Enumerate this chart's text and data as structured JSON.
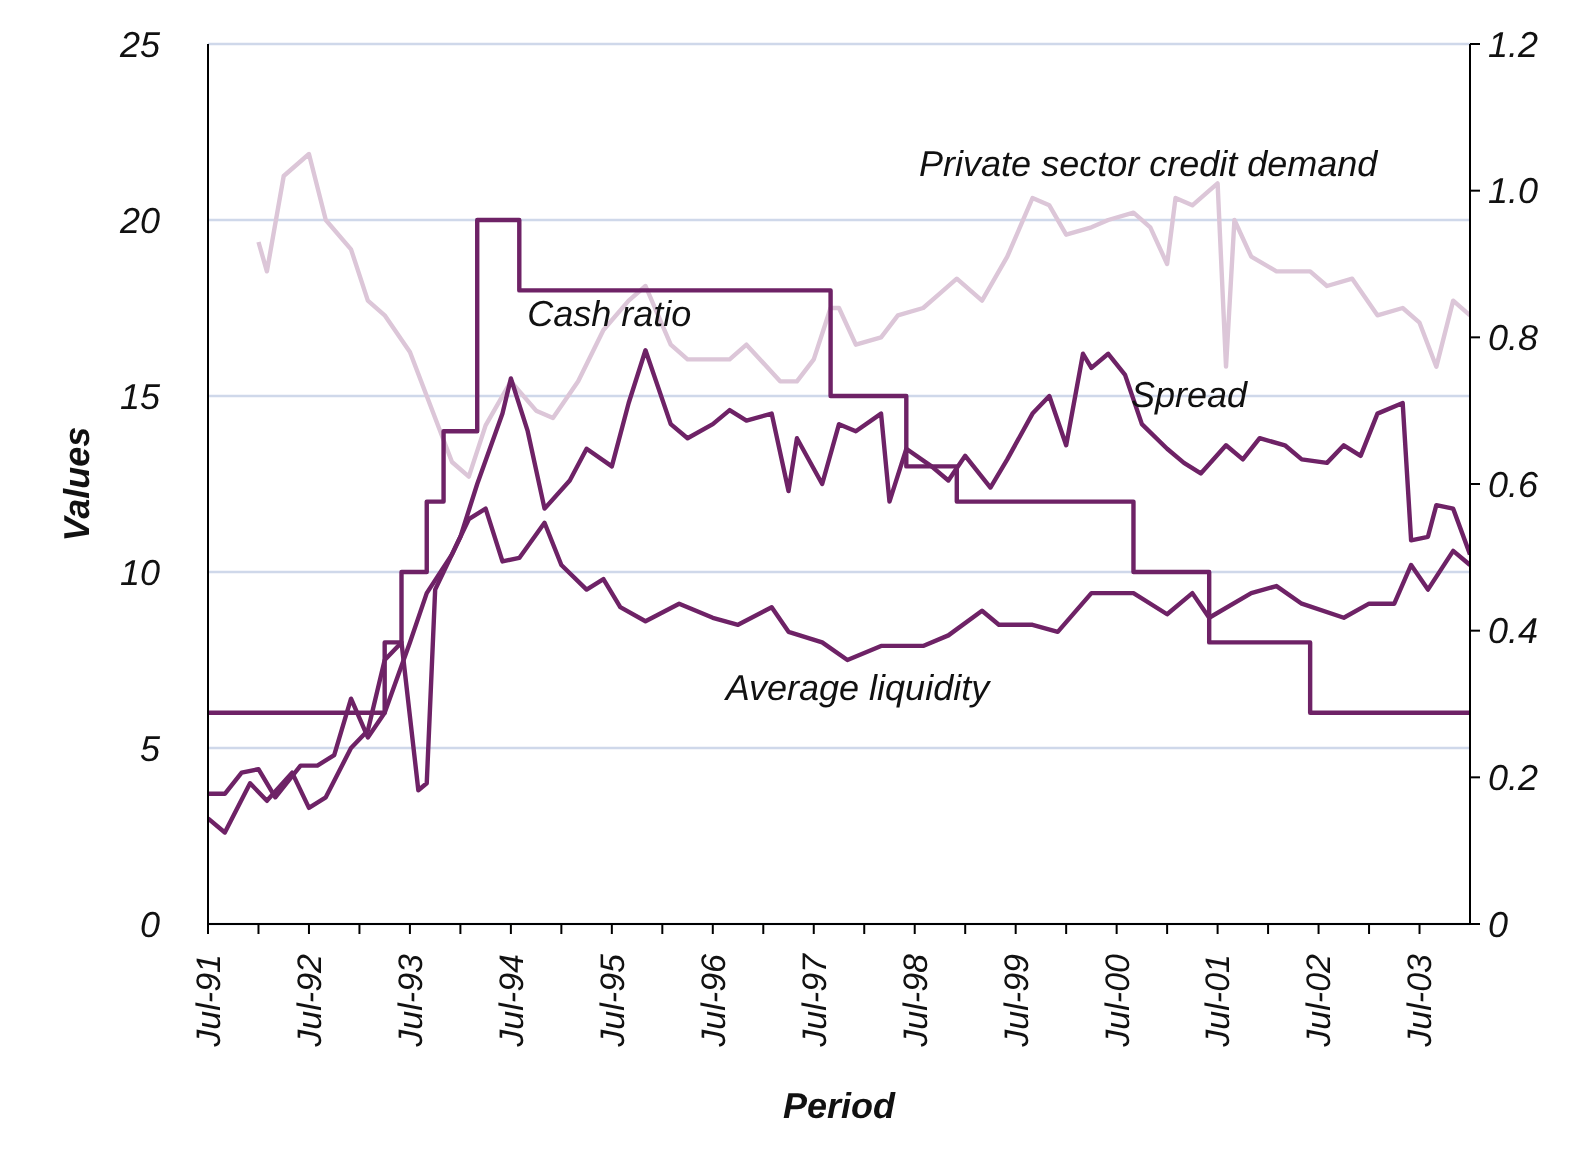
{
  "chart_data": {
    "type": "line",
    "xlabel": "Period",
    "ylabel": "Values",
    "xlim": [
      "1991-07",
      "2004-01"
    ],
    "xticks": [
      {
        "value": "1991-07",
        "label": "Jul-91"
      },
      {
        "value": "1992-01",
        "label": null
      },
      {
        "value": "1992-07",
        "label": "Jul-92"
      },
      {
        "value": "1993-01",
        "label": null
      },
      {
        "value": "1993-07",
        "label": "Jul-93"
      },
      {
        "value": "1994-01",
        "label": null
      },
      {
        "value": "1994-07",
        "label": "Jul-94"
      },
      {
        "value": "1995-01",
        "label": null
      },
      {
        "value": "1995-07",
        "label": "Jul-95"
      },
      {
        "value": "1996-01",
        "label": null
      },
      {
        "value": "1996-07",
        "label": "Jul-96"
      },
      {
        "value": "1997-01",
        "label": null
      },
      {
        "value": "1997-07",
        "label": "Jul-97"
      },
      {
        "value": "1998-01",
        "label": null
      },
      {
        "value": "1998-07",
        "label": "Jul-98"
      },
      {
        "value": "1999-01",
        "label": null
      },
      {
        "value": "1999-07",
        "label": "Jul-99"
      },
      {
        "value": "2000-01",
        "label": null
      },
      {
        "value": "2000-07",
        "label": "Jul-00"
      },
      {
        "value": "2001-01",
        "label": null
      },
      {
        "value": "2001-07",
        "label": "Jul-01"
      },
      {
        "value": "2002-01",
        "label": null
      },
      {
        "value": "2002-07",
        "label": "Jul-02"
      },
      {
        "value": "2003-01",
        "label": null
      },
      {
        "value": "2003-07",
        "label": "Jul-03"
      }
    ],
    "ylim": [
      0,
      25
    ],
    "yticks": [
      0,
      5,
      10,
      15,
      20,
      25
    ],
    "y2lim": [
      0,
      1.2
    ],
    "y2ticks": [
      0,
      0.2,
      0.4,
      0.6,
      0.8,
      {
        "value": 1,
        "label": "1.0"
      },
      1.2
    ],
    "grid": "y",
    "series": [
      {
        "name": "Private sector credit demand",
        "color": "#dcc6d8",
        "axis": "y2",
        "x": [
          "1992-01",
          "1992-02",
          "1992-04",
          "1992-07",
          "1992-09",
          "1992-12",
          "1993-02",
          "1993-04",
          "1993-07",
          "1993-09",
          "1993-12",
          "1994-02",
          "1994-04",
          "1994-07",
          "1994-10",
          "1994-12",
          "1995-03",
          "1995-06",
          "1995-09",
          "1995-11",
          "1996-02",
          "1996-04",
          "1996-09",
          "1996-11",
          "1997-03",
          "1997-05",
          "1997-07",
          "1997-09",
          "1997-10",
          "1997-12",
          "1998-03",
          "1998-05",
          "1998-08",
          "1998-10",
          "1998-12",
          "1999-03",
          "1999-06",
          "1999-09",
          "1999-11",
          "2000-01",
          "2000-04",
          "2000-06",
          "2000-09",
          "2000-11",
          "2001-01",
          "2001-02",
          "2001-04",
          "2001-06",
          "2001-07",
          "2001-08",
          "2001-09",
          "2001-11",
          "2002-02",
          "2002-06",
          "2002-08",
          "2002-11",
          "2003-02",
          "2003-05",
          "2003-07",
          "2003-09",
          "2003-11",
          "2004-01"
        ],
        "values": [
          0.93,
          0.89,
          1.02,
          1.05,
          0.96,
          0.92,
          0.85,
          0.83,
          0.78,
          0.72,
          0.63,
          0.61,
          0.68,
          0.74,
          0.7,
          0.69,
          0.74,
          0.81,
          0.85,
          0.87,
          0.79,
          0.77,
          0.77,
          0.79,
          0.74,
          0.74,
          0.77,
          0.84,
          0.84,
          0.79,
          0.8,
          0.83,
          0.84,
          0.86,
          0.88,
          0.85,
          0.91,
          0.99,
          0.98,
          0.94,
          0.95,
          0.96,
          0.97,
          0.95,
          0.9,
          0.99,
          0.98,
          1.0,
          1.01,
          0.76,
          0.96,
          0.91,
          0.89,
          0.89,
          0.87,
          0.88,
          0.83,
          0.84,
          0.82,
          0.76,
          0.85,
          0.83
        ]
      },
      {
        "name": "Cash ratio",
        "type": "step",
        "color": "#6e2266",
        "x": [
          "1991-07",
          "1993-04",
          "1993-06",
          "1993-09",
          "1993-11",
          "1994-03",
          "1994-08",
          "1997-09",
          "1998-06",
          "1998-12",
          "2000-09",
          "2001-06",
          "2002-06",
          "2004-01"
        ],
        "values": [
          6,
          8,
          10,
          12,
          14,
          20,
          18,
          15,
          13,
          12,
          10,
          8,
          6,
          6
        ]
      },
      {
        "name": "Spread",
        "color": "#6e2266",
        "x": [
          "1991-07",
          "1991-09",
          "1991-12",
          "1992-02",
          "1992-05",
          "1992-07",
          "1992-09",
          "1992-12",
          "1993-02",
          "1993-04",
          "1993-06",
          "1993-08",
          "1993-09",
          "1993-10",
          "1994-01",
          "1994-03",
          "1994-06",
          "1994-07",
          "1994-09",
          "1994-11",
          "1995-02",
          "1995-04",
          "1995-07",
          "1995-09",
          "1995-11",
          "1996-02",
          "1996-04",
          "1996-07",
          "1996-09",
          "1996-11",
          "1997-02",
          "1997-04",
          "1997-05",
          "1997-08",
          "1997-10",
          "1997-12",
          "1998-03",
          "1998-04",
          "1998-06",
          "1998-09",
          "1998-11",
          "1999-01",
          "1999-04",
          "1999-06",
          "1999-09",
          "1999-11",
          "2000-01",
          "2000-03",
          "2000-04",
          "2000-06",
          "2000-08",
          "2000-10",
          "2001-01",
          "2001-03",
          "2001-05",
          "2001-08",
          "2001-10",
          "2001-12",
          "2002-03",
          "2002-05",
          "2002-08",
          "2002-10",
          "2002-12",
          "2003-02",
          "2003-05",
          "2003-06",
          "2003-08",
          "2003-09",
          "2003-11",
          "2004-01"
        ],
        "values": [
          3.0,
          2.6,
          4.0,
          3.5,
          4.3,
          3.3,
          3.6,
          5.0,
          5.5,
          7.5,
          8.0,
          3.8,
          4.0,
          9.5,
          11.0,
          12.5,
          14.5,
          15.5,
          14.0,
          11.8,
          12.6,
          13.5,
          13.0,
          14.8,
          16.3,
          14.2,
          13.8,
          14.2,
          14.6,
          14.3,
          14.5,
          12.3,
          13.8,
          12.5,
          14.2,
          14.0,
          14.5,
          12.0,
          13.5,
          13.0,
          12.6,
          13.3,
          12.4,
          13.2,
          14.5,
          15.0,
          13.6,
          16.2,
          15.8,
          16.2,
          15.6,
          14.2,
          13.5,
          13.1,
          12.8,
          13.6,
          13.2,
          13.8,
          13.6,
          13.2,
          13.1,
          13.6,
          13.3,
          14.5,
          14.8,
          10.9,
          11.0,
          11.9,
          11.8,
          10.5
        ]
      },
      {
        "name": "Average liquidity",
        "color": "#6e2266",
        "x": [
          "1991-07",
          "1991-09",
          "1991-11",
          "1992-01",
          "1992-03",
          "1992-06",
          "1992-08",
          "1992-10",
          "1992-12",
          "1993-02",
          "1993-04",
          "1993-07",
          "1993-09",
          "1993-12",
          "1994-02",
          "1994-04",
          "1994-06",
          "1994-08",
          "1994-11",
          "1995-01",
          "1995-04",
          "1995-06",
          "1995-08",
          "1995-11",
          "1996-03",
          "1996-07",
          "1996-10",
          "1997-02",
          "1997-04",
          "1997-08",
          "1997-11",
          "1998-03",
          "1998-08",
          "1998-11",
          "1999-03",
          "1999-05",
          "1999-09",
          "1999-12",
          "2000-04",
          "2000-09",
          "2001-01",
          "2001-04",
          "2001-06",
          "2001-11",
          "2002-02",
          "2002-05",
          "2002-10",
          "2003-01",
          "2003-04",
          "2003-06",
          "2003-08",
          "2003-11",
          "2004-01"
        ],
        "values": [
          3.7,
          3.7,
          4.3,
          4.4,
          3.6,
          4.5,
          4.5,
          4.8,
          6.4,
          5.3,
          6.0,
          8.0,
          9.4,
          10.5,
          11.5,
          11.8,
          10.3,
          10.4,
          11.4,
          10.2,
          9.5,
          9.8,
          9.0,
          8.6,
          9.1,
          8.7,
          8.5,
          9.0,
          8.3,
          8.0,
          7.5,
          7.9,
          7.9,
          8.2,
          8.9,
          8.5,
          8.5,
          8.3,
          9.4,
          9.4,
          8.8,
          9.4,
          8.7,
          9.4,
          9.6,
          9.1,
          8.7,
          9.1,
          9.1,
          10.2,
          9.5,
          10.6,
          10.2
        ]
      }
    ]
  }
}
